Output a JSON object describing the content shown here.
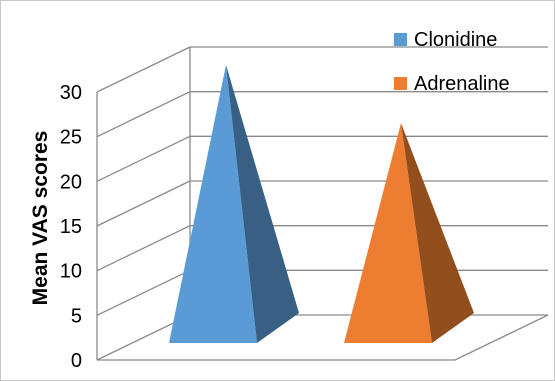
{
  "chart_data": {
    "type": "bar",
    "bar_shape": "3d-pyramid",
    "categories": [
      "Clonidine",
      "Adrenaline"
    ],
    "values": [
      30.5,
      24
    ],
    "colors": [
      "#5b9bd5",
      "#ed7d31"
    ],
    "ylabel": "Mean VAS scores",
    "yticks": [
      0,
      5,
      10,
      15,
      20,
      25,
      30
    ],
    "ylim": [
      0,
      30
    ],
    "grid": true,
    "legend": {
      "placement": "top-right",
      "entries": [
        "Clonidine",
        "Adrenaline"
      ]
    }
  }
}
